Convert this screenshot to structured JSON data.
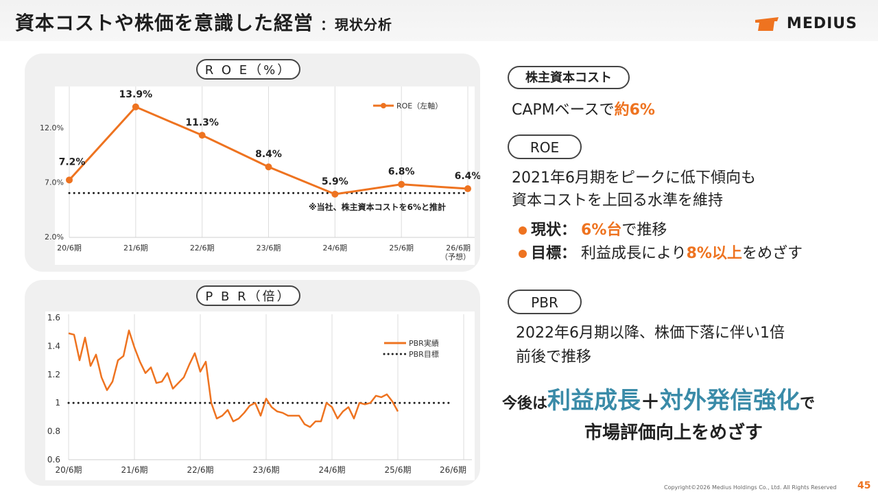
{
  "header": {
    "title": "資本コストや株価を意識した経営",
    "subtitle": "：現状分析",
    "logo_text": "MEDIUS"
  },
  "colors": {
    "accent": "#ee7320",
    "teal": "#3a8ba8",
    "dark": "#222222"
  },
  "roe_panel": {
    "title": "R O E（%）",
    "note": "※当社、株主資本コストを6%と推計"
  },
  "pbr_panel": {
    "title": "P B R（倍）"
  },
  "right": {
    "cost_label": "株主資本コスト",
    "cost_text_prefix": "CAPMベースで",
    "cost_text_highlight": "約6%",
    "roe_label": "ROE",
    "roe_line1": "2021年6月期をピークに低下傾向も",
    "roe_line2": "資本コストを上回る水準を維持",
    "status_label": "現状：",
    "status_highlight": "6%台",
    "status_suffix": "で推移",
    "goal_label": "目標：",
    "goal_prefix": "利益成長により",
    "goal_highlight": "8%以上",
    "goal_suffix": "をめざす",
    "pbr_label": "PBR",
    "pbr_line1": "2022年6月期以降、株価下落に伴い1倍",
    "pbr_line2": "前後で推移",
    "future_prefix": "今後は",
    "future_h1": "利益成長",
    "future_plus": "＋",
    "future_h2": "対外発信強化",
    "future_suffix": "で",
    "future_line2": "市場評価向上をめざす"
  },
  "footer": {
    "copyright": "Copyright©2026 Medius Holdings Co., Ltd. All Rights Reserved",
    "page": "45"
  },
  "chart_data": [
    {
      "type": "line",
      "title": "R O E（%）",
      "categories": [
        "20/6期",
        "21/6期",
        "22/6期",
        "23/6期",
        "24/6期",
        "25/6期",
        "26/6期\n（予想）"
      ],
      "series": [
        {
          "name": "ROE（左軸）",
          "values": [
            7.2,
            13.9,
            11.3,
            8.4,
            5.9,
            6.8,
            6.4
          ],
          "data_labels": [
            "7.2%",
            "13.9%",
            "11.3%",
            "8.4%",
            "5.9%",
            "6.8%",
            "6.4%"
          ],
          "color": "#ee7320"
        }
      ],
      "reference_line": {
        "value": 6,
        "style": "dotted"
      },
      "yticks": [
        "2.0%",
        "7.0%",
        "12.0%"
      ],
      "ylim": [
        2,
        15
      ],
      "grid": "vertical",
      "legend": "top-right"
    },
    {
      "type": "line",
      "title": "P B R（倍）",
      "xticks": [
        "20/6期",
        "21/6期",
        "22/6期",
        "23/6期",
        "24/6期",
        "25/6期",
        "26/6期"
      ],
      "yticks": [
        "0.6",
        "0.8",
        "1",
        "1.2",
        "1.4",
        "1.6"
      ],
      "ylim": [
        0.6,
        1.6
      ],
      "xlim": [
        0,
        72
      ],
      "series": [
        {
          "name": "PBR実績",
          "color": "#ee7320",
          "x": [
            0,
            1,
            2,
            3,
            4,
            5,
            6,
            7,
            8,
            9,
            10,
            11,
            12,
            13,
            14,
            15,
            16,
            17,
            18,
            19,
            20,
            21,
            22,
            23,
            24,
            25,
            26,
            27,
            28,
            29,
            30,
            31,
            32,
            33,
            34,
            35,
            36,
            37,
            38,
            39,
            40,
            41,
            42,
            43,
            44,
            45,
            46,
            47,
            48,
            49,
            50,
            51,
            52,
            53,
            54,
            55,
            56,
            57,
            58,
            59,
            60
          ],
          "y": [
            1.49,
            1.48,
            1.3,
            1.46,
            1.26,
            1.34,
            1.18,
            1.09,
            1.15,
            1.3,
            1.33,
            1.51,
            1.39,
            1.29,
            1.21,
            1.25,
            1.14,
            1.15,
            1.21,
            1.1,
            1.14,
            1.18,
            1.27,
            1.35,
            1.22,
            1.29,
            1.0,
            0.89,
            0.91,
            0.95,
            0.87,
            0.89,
            0.93,
            0.98,
            1.0,
            0.91,
            1.03,
            0.97,
            0.94,
            0.93,
            0.91,
            0.91,
            0.91,
            0.85,
            0.83,
            0.87,
            0.87,
            1.0,
            0.97,
            0.89,
            0.94,
            0.97,
            0.89,
            1.0,
            0.99,
            1.0,
            1.05,
            1.04,
            1.06,
            1.01,
            0.94
          ]
        },
        {
          "name": "PBR目標",
          "style": "dotted",
          "color": "#222222",
          "x": [
            0,
            72
          ],
          "y": [
            1,
            1
          ]
        }
      ],
      "grid": "vertical",
      "legend": "top-right"
    }
  ]
}
